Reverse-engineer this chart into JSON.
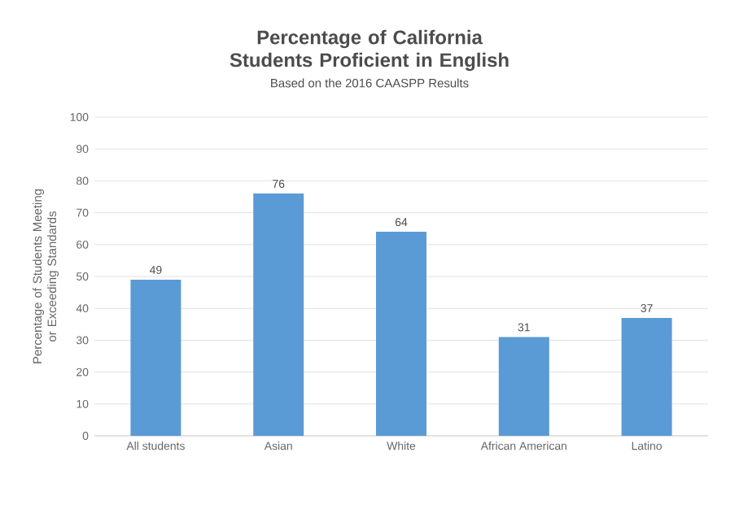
{
  "chart_data": {
    "type": "bar",
    "title": "Percentage of California Students Proficient in English",
    "subtitle": "Based on the 2016 CAASPP Results",
    "ylabel": "Percentage of Students Meeting or Exceeding Standards",
    "categories": [
      "All students",
      "Asian",
      "White",
      "African American",
      "Latino"
    ],
    "values": [
      49,
      76,
      64,
      31,
      37
    ],
    "color": "#5b9bd5",
    "ylim": [
      0,
      100
    ],
    "yticks": [
      0,
      10,
      20,
      30,
      40,
      50,
      60,
      70,
      80,
      90,
      100
    ],
    "grid": "y",
    "data_labels": true
  }
}
